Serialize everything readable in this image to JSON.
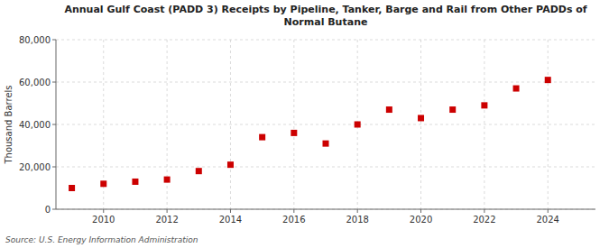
{
  "chart_data": {
    "type": "scatter",
    "title": "Annual Gulf Coast (PADD 3) Receipts by Pipeline, Tanker, Barge and Rail from Other PADDs of\nNormal Butane",
    "y_label": "Thousand Barrels",
    "annotations": [
      "Source: U.S. Energy Information Administration"
    ],
    "x": [
      2009,
      2010,
      2011,
      2012,
      2013,
      2014,
      2015,
      2016,
      2017,
      2018,
      2019,
      2020,
      2021,
      2022,
      2023,
      2024
    ],
    "values": [
      10000,
      12000,
      13000,
      14000,
      18000,
      21000,
      34000,
      36000,
      31000,
      40000,
      47000,
      43000,
      47000,
      49000,
      57000,
      61000
    ],
    "color": "#CC0000",
    "marker": "square",
    "xlim": [
      2008.5,
      2025.5
    ],
    "xticks": [
      2010,
      2012,
      2014,
      2016,
      2018,
      2020,
      2022,
      2024
    ],
    "ylim": [
      0,
      80000
    ],
    "yticks": [
      0,
      {
        "value": 20000,
        "label": "20,000"
      },
      {
        "value": 40000,
        "label": "40,000"
      },
      {
        "value": 60000,
        "label": "60,000"
      },
      {
        "value": 80000,
        "label": "80,000"
      }
    ],
    "grid": true
  }
}
